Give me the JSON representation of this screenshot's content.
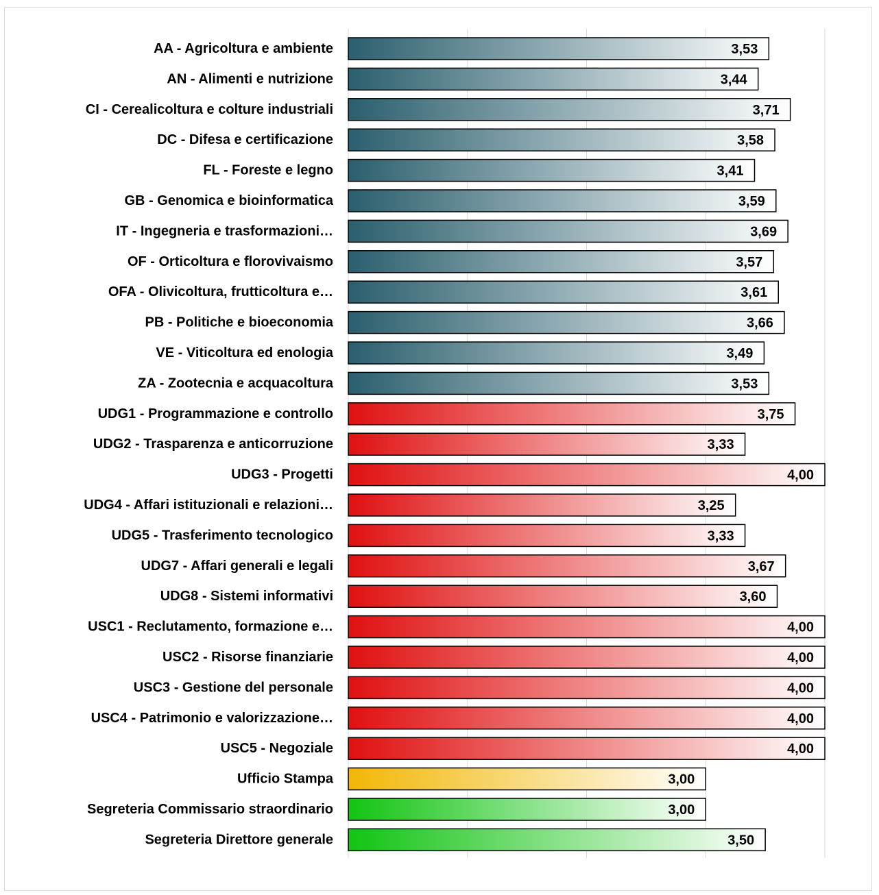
{
  "chart_data": {
    "type": "bar",
    "orientation": "horizontal",
    "xlim": [
      0,
      4
    ],
    "grid": true,
    "legend": "none",
    "categories": [
      "AA - Agricoltura e ambiente",
      "AN - Alimenti e nutrizione",
      "CI - Cerealicoltura e colture industriali",
      "DC - Difesa e certificazione",
      "FL - Foreste e legno",
      "GB - Genomica e bioinformatica",
      "IT - Ingegneria e trasformazioni…",
      "OF - Orticoltura e florovivaismo",
      "OFA - Olivicoltura, frutticoltura e…",
      "PB - Politiche e bioeconomia",
      "VE - Viticoltura ed enologia",
      "ZA - Zootecnia e acquacoltura",
      "UDG1 - Programmazione e controllo",
      "UDG2 - Trasparenza e anticorruzione",
      "UDG3 - Progetti",
      "UDG4 - Affari istituzionali e relazioni…",
      "UDG5 - Trasferimento tecnologico",
      "UDG7 - Affari generali e legali",
      "UDG8 - Sistemi informativi",
      "USC1 - Reclutamento, formazione e…",
      "USC2 - Risorse finanziarie",
      "USC3 - Gestione del personale",
      "USC4 - Patrimonio e valorizzazione…",
      "USC5 - Negoziale",
      "Ufficio Stampa",
      "Segreteria Commissario straordinario",
      "Segreteria Direttore generale"
    ],
    "values": [
      3.53,
      3.44,
      3.71,
      3.58,
      3.41,
      3.59,
      3.69,
      3.57,
      3.61,
      3.66,
      3.49,
      3.53,
      3.75,
      3.33,
      4.0,
      3.25,
      3.33,
      3.67,
      3.6,
      4.0,
      4.0,
      4.0,
      4.0,
      4.0,
      3.0,
      3.0,
      3.5
    ],
    "value_labels": [
      "3,53",
      "3,44",
      "3,71",
      "3,58",
      "3,41",
      "3,59",
      "3,69",
      "3,57",
      "3,61",
      "3,66",
      "3,49",
      "3,53",
      "3,75",
      "3,33",
      "4,00",
      "3,25",
      "3,33",
      "3,67",
      "3,60",
      "4,00",
      "4,00",
      "4,00",
      "4,00",
      "4,00",
      "3,00",
      "3,00",
      "3,50"
    ],
    "bar_groups": [
      "teal",
      "teal",
      "teal",
      "teal",
      "teal",
      "teal",
      "teal",
      "teal",
      "teal",
      "teal",
      "teal",
      "teal",
      "red",
      "red",
      "red",
      "red",
      "red",
      "red",
      "red",
      "red",
      "red",
      "red",
      "red",
      "red",
      "orange",
      "green",
      "green"
    ],
    "colors": {
      "teal": "#2b5f6e",
      "red": "#e01010",
      "orange": "#f2b705",
      "green": "#12c412",
      "gradient_end": "#ffffff",
      "grid": "#d9d9d9",
      "bar_border": "#000000"
    }
  }
}
